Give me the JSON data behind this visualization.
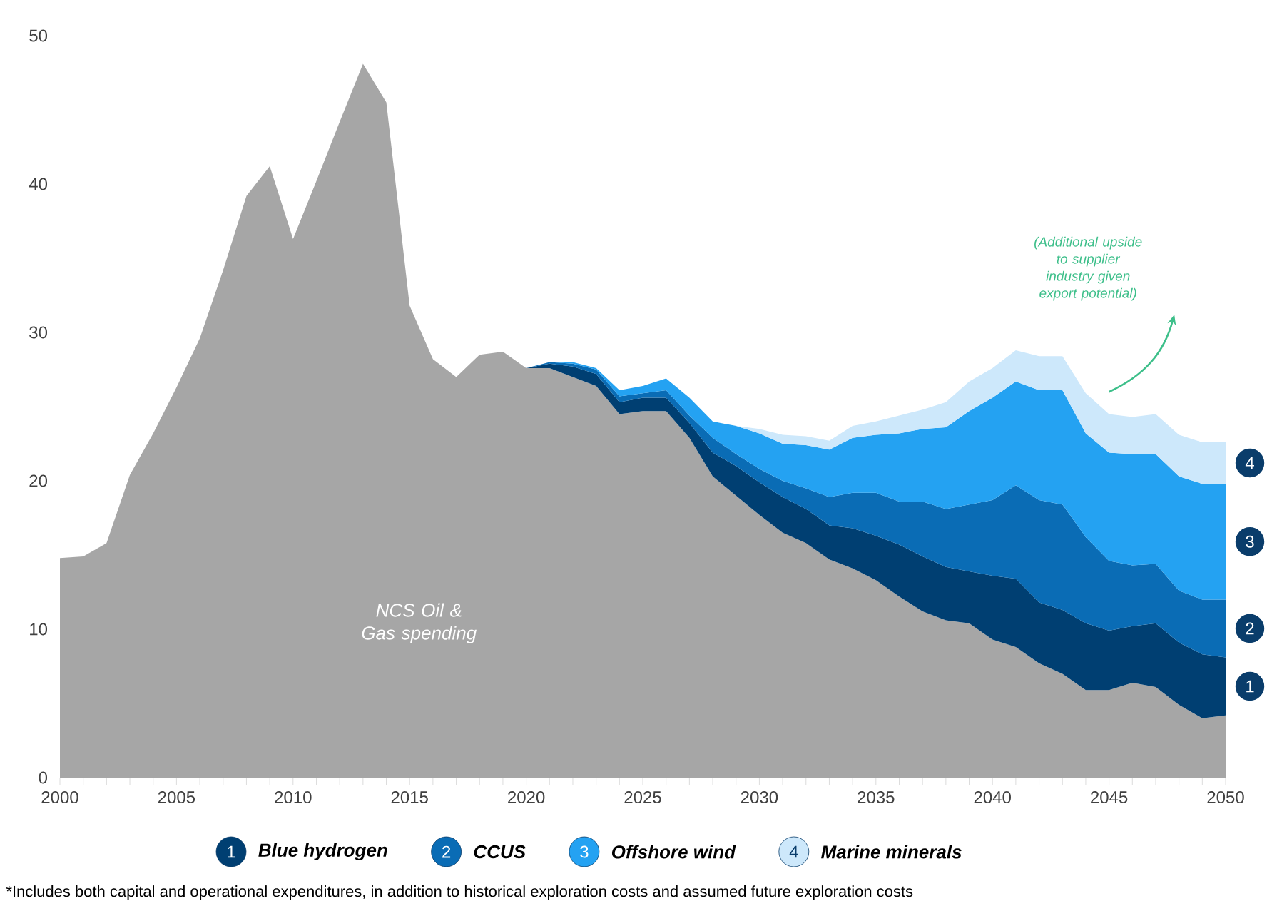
{
  "chart_data": {
    "type": "area",
    "stacked": true,
    "x": [
      2000,
      2001,
      2002,
      2003,
      2004,
      2005,
      2006,
      2007,
      2008,
      2009,
      2010,
      2011,
      2012,
      2013,
      2014,
      2015,
      2016,
      2017,
      2018,
      2019,
      2020,
      2021,
      2022,
      2023,
      2024,
      2025,
      2026,
      2027,
      2028,
      2029,
      2030,
      2031,
      2032,
      2033,
      2034,
      2035,
      2036,
      2037,
      2038,
      2039,
      2040,
      2041,
      2042,
      2043,
      2044,
      2045,
      2046,
      2047,
      2048,
      2049,
      2050
    ],
    "series": [
      {
        "name": "NCS Oil & Gas spending",
        "color": "#a6a6a6",
        "values": [
          14.8,
          14.9,
          15.8,
          20.4,
          23.2,
          26.3,
          29.6,
          34.2,
          39.2,
          41.2,
          36.3,
          40.2,
          44.2,
          48.1,
          45.5,
          31.8,
          28.2,
          27.0,
          28.5,
          28.7,
          27.6,
          27.6,
          27.0,
          26.4,
          24.5,
          24.7,
          24.7,
          22.9,
          20.3,
          19.0,
          17.7,
          16.5,
          15.8,
          14.7,
          14.1,
          13.3,
          12.2,
          11.2,
          10.6,
          10.4,
          9.3,
          8.8,
          7.7,
          7.0,
          5.9,
          5.9,
          6.4,
          6.1,
          4.9,
          4.0,
          4.2
        ]
      },
      {
        "name": "Blue hydrogen",
        "color": "#003f72",
        "values": [
          null,
          null,
          null,
          null,
          null,
          null,
          null,
          null,
          null,
          null,
          null,
          null,
          null,
          null,
          null,
          null,
          null,
          null,
          null,
          null,
          0,
          0.3,
          0.7,
          0.8,
          0.8,
          0.9,
          0.9,
          1.0,
          1.6,
          2.0,
          2.2,
          2.4,
          2.3,
          2.3,
          2.7,
          3.0,
          3.5,
          3.7,
          3.6,
          3.5,
          4.3,
          4.6,
          4.1,
          4.3,
          4.5,
          4.0,
          3.8,
          4.3,
          4.2,
          4.3,
          3.9
        ]
      },
      {
        "name": "CCUS",
        "color": "#0a6cb5",
        "values": [
          null,
          null,
          null,
          null,
          null,
          null,
          null,
          null,
          null,
          null,
          null,
          null,
          null,
          null,
          null,
          null,
          null,
          null,
          null,
          null,
          0,
          0.1,
          0.2,
          0.3,
          0.4,
          0.3,
          0.5,
          0.5,
          1.0,
          0.8,
          0.9,
          1.1,
          1.4,
          1.9,
          2.4,
          2.9,
          2.9,
          3.7,
          3.9,
          4.5,
          5.1,
          6.3,
          6.9,
          7.1,
          5.8,
          4.7,
          4.1,
          4.0,
          3.5,
          3.7,
          3.9
        ]
      },
      {
        "name": "Offshore wind",
        "color": "#24a2f2",
        "values": [
          null,
          null,
          null,
          null,
          null,
          null,
          null,
          null,
          null,
          null,
          null,
          null,
          null,
          null,
          null,
          null,
          null,
          null,
          null,
          null,
          0,
          0.0,
          0.1,
          0.1,
          0.4,
          0.5,
          0.8,
          1.2,
          1.1,
          1.9,
          2.4,
          2.5,
          2.9,
          3.2,
          3.7,
          3.9,
          4.6,
          4.9,
          5.5,
          6.3,
          6.9,
          7.0,
          7.4,
          7.7,
          7.0,
          7.3,
          7.5,
          7.4,
          7.7,
          7.8,
          7.8
        ]
      },
      {
        "name": "Marine minerals",
        "color": "#cde8fb",
        "values": [
          null,
          null,
          null,
          null,
          null,
          null,
          null,
          null,
          null,
          null,
          null,
          null,
          null,
          null,
          null,
          null,
          null,
          null,
          null,
          null,
          null,
          null,
          null,
          null,
          null,
          null,
          null,
          null,
          null,
          0,
          0.3,
          0.6,
          0.6,
          0.6,
          0.8,
          0.9,
          1.2,
          1.3,
          1.7,
          2.0,
          2.0,
          2.1,
          2.3,
          2.3,
          2.7,
          2.6,
          2.5,
          2.7,
          2.8,
          2.8,
          2.8
        ]
      }
    ],
    "xlim": [
      2000,
      2050
    ],
    "ylim": [
      0,
      50
    ],
    "xticks": [
      2000,
      2005,
      2010,
      2015,
      2020,
      2025,
      2030,
      2035,
      2040,
      2045,
      2050
    ],
    "yticks": [
      0,
      10,
      20,
      30,
      40,
      50
    ],
    "legend": "bottom",
    "annotations": [
      "1",
      "2",
      "3",
      "4",
      "(Additional upside to supplier industry given export potential)",
      "*Includes both capital and operational expenditures, in addition to historical exploration costs and assumed future exploration costs"
    ]
  }
}
